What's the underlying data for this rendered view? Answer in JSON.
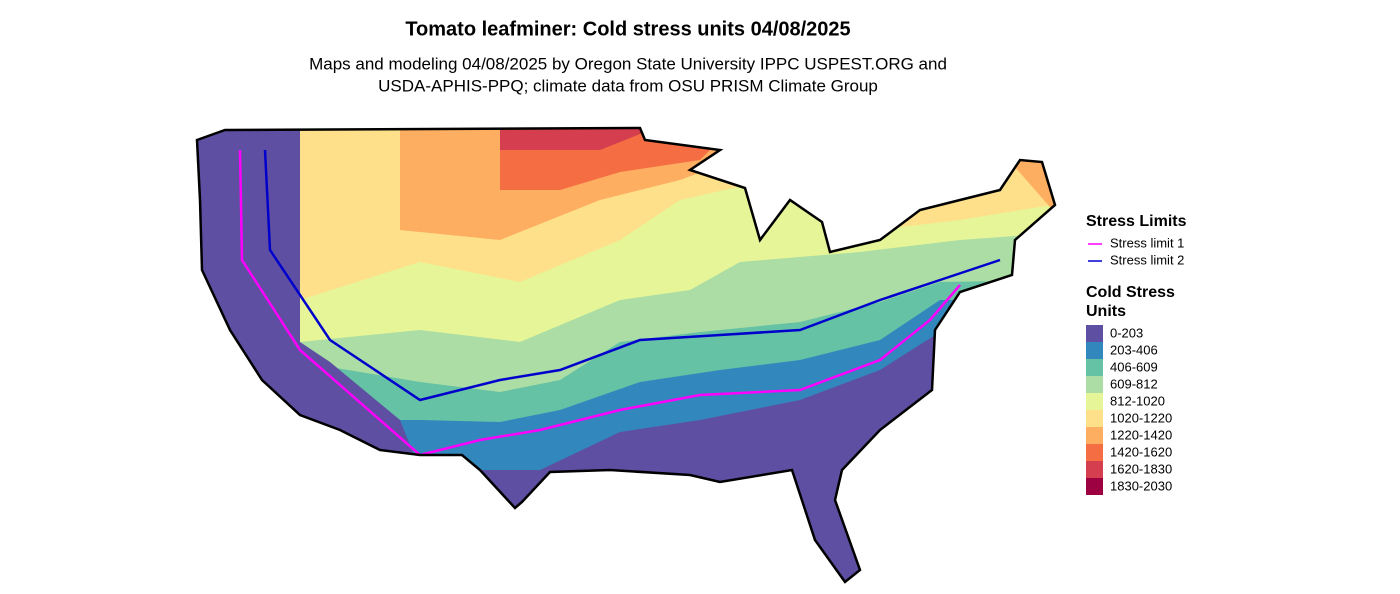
{
  "title": "Tomato leafminer: Cold stress units 04/08/2025",
  "subtitle": [
    "Maps and modeling 04/08/2025 by Oregon State University IPPC USPEST.ORG and",
    "USDA-APHIS-PPQ; climate data from OSU PRISM Climate Group"
  ],
  "legend_lines": {
    "title": "Stress Limits",
    "items": [
      {
        "label": "Stress limit 1",
        "color": "#ff00ff"
      },
      {
        "label": "Stress limit 2",
        "color": "#0000cd"
      }
    ]
  },
  "legend_fill": {
    "title": "Cold Stress Units",
    "items": [
      {
        "label": "0-203",
        "color": "#5e4fa2"
      },
      {
        "label": "203-406",
        "color": "#3288bd"
      },
      {
        "label": "406-609",
        "color": "#66c2a5"
      },
      {
        "label": "609-812",
        "color": "#abdda4"
      },
      {
        "label": "812-1020",
        "color": "#e6f598"
      },
      {
        "label": "1020-1220",
        "color": "#fee08b"
      },
      {
        "label": "1220-1420",
        "color": "#fdae61"
      },
      {
        "label": "1420-1620",
        "color": "#f46d43"
      },
      {
        "label": "1620-1830",
        "color": "#d53e4f"
      },
      {
        "label": "1830-2030",
        "color": "#9e0142"
      }
    ]
  }
}
